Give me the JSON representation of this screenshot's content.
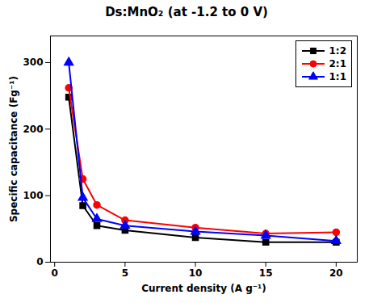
{
  "chart_data": {
    "type": "line",
    "title": "Ds:MnO₂ (at -1.2 to 0 V)",
    "xlabel": "Current density (A g⁻¹)",
    "ylabel": "Specific capacitance (Fg⁻¹)",
    "x": [
      1,
      2,
      3,
      5,
      10,
      15,
      20
    ],
    "series": [
      {
        "name": "1:2",
        "color": "#000000",
        "marker": "square",
        "values": [
          248,
          85,
          55,
          48,
          37,
          30,
          30
        ]
      },
      {
        "name": "2:1",
        "color": "#ff0000",
        "marker": "circle",
        "values": [
          262,
          125,
          86,
          63,
          52,
          43,
          45
        ]
      },
      {
        "name": "1:1",
        "color": "#0000ff",
        "marker": "triangle",
        "values": [
          300,
          97,
          65,
          55,
          46,
          40,
          32
        ]
      }
    ],
    "xlim": [
      -0.3,
      21.5
    ],
    "ylim": [
      0,
      340
    ],
    "xticks": [
      0,
      5,
      10,
      15,
      20
    ],
    "yticks": [
      0,
      100,
      200,
      300
    ],
    "grid": false,
    "legend": "upper right"
  }
}
